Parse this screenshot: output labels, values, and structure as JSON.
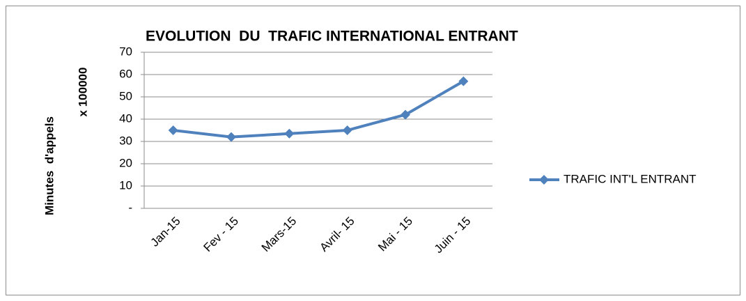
{
  "chart_data": {
    "type": "line",
    "title": "EVOLUTION  DU  TRAFIC INTERNATIONAL ENTRANT",
    "y_label": "Minutes  d'appels",
    "y_unit_label": "x 100000",
    "categories": [
      "Jan-15",
      "Fev - 15",
      "Mars-15",
      "Avril- 15",
      "Mai - 15",
      "Juin - 15"
    ],
    "series": [
      {
        "name": "TRAFIC INT'L ENTRANT",
        "color": "#4f81bd",
        "values": [
          35,
          32,
          33.5,
          35,
          42,
          57
        ]
      }
    ],
    "ylim": [
      0,
      70
    ],
    "yticks": [
      {
        "value": 0,
        "label": "-"
      },
      10,
      20,
      30,
      40,
      50,
      60,
      70
    ],
    "grid": true,
    "legend": "right"
  }
}
